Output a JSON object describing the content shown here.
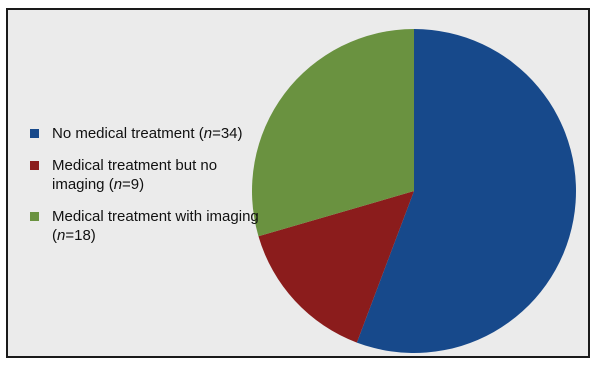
{
  "chart_data": {
    "type": "pie",
    "title": "",
    "legend_position": "left",
    "slices": [
      {
        "label_pre": "No medical treatment (",
        "label_var": "n",
        "label_post": "=34)",
        "value": 34,
        "color": "#17498b"
      },
      {
        "label_pre": "Medical treatment but no imaging (",
        "label_var": "n",
        "label_post": "=9)",
        "value": 9,
        "color": "#8b1c1c"
      },
      {
        "label_pre": "Medical treatment with imaging (",
        "label_var": "n",
        "label_post": "=18)",
        "value": 18,
        "color": "#6a9240"
      }
    ],
    "start_angle": "12 o'clock",
    "direction": "clockwise"
  }
}
